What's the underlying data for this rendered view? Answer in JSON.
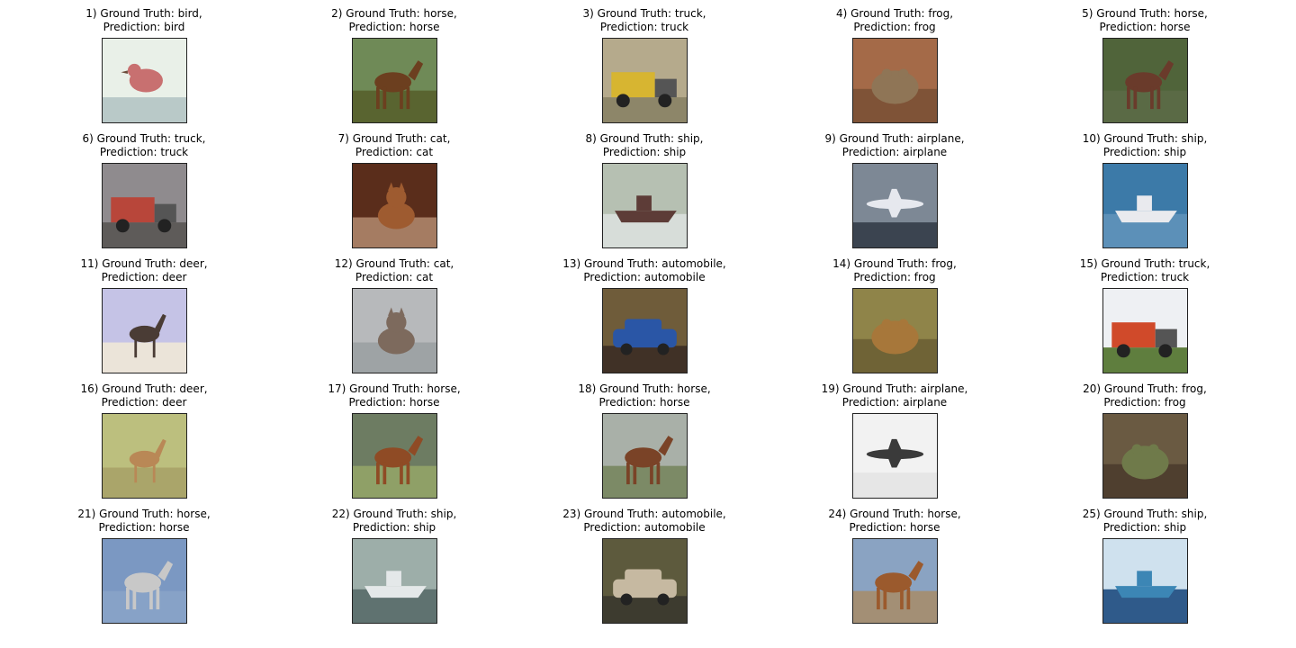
{
  "grid": {
    "items": [
      {
        "index": "1)",
        "truth": "bird",
        "prediction": "bird",
        "subject": "bird",
        "bg": "#e9f0e8",
        "fg": "#c87070",
        "ground": "#b9c9c8"
      },
      {
        "index": "2)",
        "truth": "horse",
        "prediction": "horse",
        "subject": "horse",
        "bg": "#6f8a57",
        "fg": "#6c3f1f",
        "ground": "#596430"
      },
      {
        "index": "3)",
        "truth": "truck",
        "prediction": "truck",
        "subject": "truck",
        "bg": "#b5aa8c",
        "fg": "#d7b531",
        "ground": "#8d8669"
      },
      {
        "index": "4)",
        "truth": "frog",
        "prediction": "frog",
        "subject": "frog",
        "bg": "#a46a48",
        "fg": "#8f7556",
        "ground": "#7f5337"
      },
      {
        "index": "5)",
        "truth": "horse",
        "prediction": "horse",
        "subject": "horse",
        "bg": "#50643a",
        "fg": "#6a3b2b",
        "ground": "#5a6a45"
      },
      {
        "index": "6)",
        "truth": "truck",
        "prediction": "truck",
        "subject": "truck",
        "bg": "#8f8b8e",
        "fg": "#b8463a",
        "ground": "#5e5b59"
      },
      {
        "index": "7)",
        "truth": "cat",
        "prediction": "cat",
        "subject": "cat",
        "bg": "#5a2d1b",
        "fg": "#9e5b30",
        "ground": "#a57c62"
      },
      {
        "index": "8)",
        "truth": "ship",
        "prediction": "ship",
        "subject": "ship",
        "bg": "#b6c0b2",
        "fg": "#5d3c37",
        "ground": "#d7ddd9"
      },
      {
        "index": "9)",
        "truth": "airplane",
        "prediction": "airplane",
        "subject": "airplane",
        "bg": "#7d8895",
        "fg": "#e6e8ee",
        "ground": "#3b4450"
      },
      {
        "index": "10)",
        "truth": "ship",
        "prediction": "ship",
        "subject": "ship",
        "bg": "#3c7aa8",
        "fg": "#e9eaee",
        "ground": "#5c90b8"
      },
      {
        "index": "11)",
        "truth": "deer",
        "prediction": "deer",
        "subject": "deer",
        "bg": "#c5c3e6",
        "fg": "#4a3c35",
        "ground": "#ebe4d9"
      },
      {
        "index": "12)",
        "truth": "cat",
        "prediction": "cat",
        "subject": "cat",
        "bg": "#b7b9bb",
        "fg": "#7d6a5d",
        "ground": "#9ea3a5"
      },
      {
        "index": "13)",
        "truth": "automobile",
        "prediction": "automobile",
        "subject": "car",
        "bg": "#6f5c3a",
        "fg": "#2a56a6",
        "ground": "#403126"
      },
      {
        "index": "14)",
        "truth": "frog",
        "prediction": "frog",
        "subject": "frog",
        "bg": "#8f8449",
        "fg": "#a7773a",
        "ground": "#6f6336"
      },
      {
        "index": "15)",
        "truth": "truck",
        "prediction": "truck",
        "subject": "truck",
        "bg": "#eef0f3",
        "fg": "#d04a2a",
        "ground": "#5f7e3e"
      },
      {
        "index": "16)",
        "truth": "deer",
        "prediction": "deer",
        "subject": "deer",
        "bg": "#bcbf7e",
        "fg": "#b98856",
        "ground": "#aaa56a"
      },
      {
        "index": "17)",
        "truth": "horse",
        "prediction": "horse",
        "subject": "horse",
        "bg": "#6d7c62",
        "fg": "#8f4b25",
        "ground": "#8fa067"
      },
      {
        "index": "18)",
        "truth": "horse",
        "prediction": "horse",
        "subject": "horse",
        "bg": "#a9b0a8",
        "fg": "#7a4327",
        "ground": "#7c8a66"
      },
      {
        "index": "19)",
        "truth": "airplane",
        "prediction": "airplane",
        "subject": "airplane",
        "bg": "#f2f2f2",
        "fg": "#3a3a3a",
        "ground": "#e6e6e6"
      },
      {
        "index": "20)",
        "truth": "frog",
        "prediction": "frog",
        "subject": "frog",
        "bg": "#6a5a42",
        "fg": "#6f7a4a",
        "ground": "#4f3f2f"
      },
      {
        "index": "21)",
        "truth": "horse",
        "prediction": "horse",
        "subject": "horse",
        "bg": "#7b98c2",
        "fg": "#c8c8c8",
        "ground": "#87a2c7"
      },
      {
        "index": "22)",
        "truth": "ship",
        "prediction": "ship",
        "subject": "ship",
        "bg": "#9daea9",
        "fg": "#e4e8e9",
        "ground": "#5f7270"
      },
      {
        "index": "23)",
        "truth": "automobile",
        "prediction": "automobile",
        "subject": "car",
        "bg": "#5d5a3d",
        "fg": "#c6b9a1",
        "ground": "#3d3b2f"
      },
      {
        "index": "24)",
        "truth": "horse",
        "prediction": "horse",
        "subject": "horse",
        "bg": "#8aa3c2",
        "fg": "#9b5a2d",
        "ground": "#a38f75"
      },
      {
        "index": "25)",
        "truth": "ship",
        "prediction": "ship",
        "subject": "ship",
        "bg": "#cfe1ee",
        "fg": "#3c86b5",
        "ground": "#2f5a8a"
      }
    ],
    "labels": {
      "ground_truth": "Ground Truth:",
      "prediction": "Prediction:"
    }
  }
}
